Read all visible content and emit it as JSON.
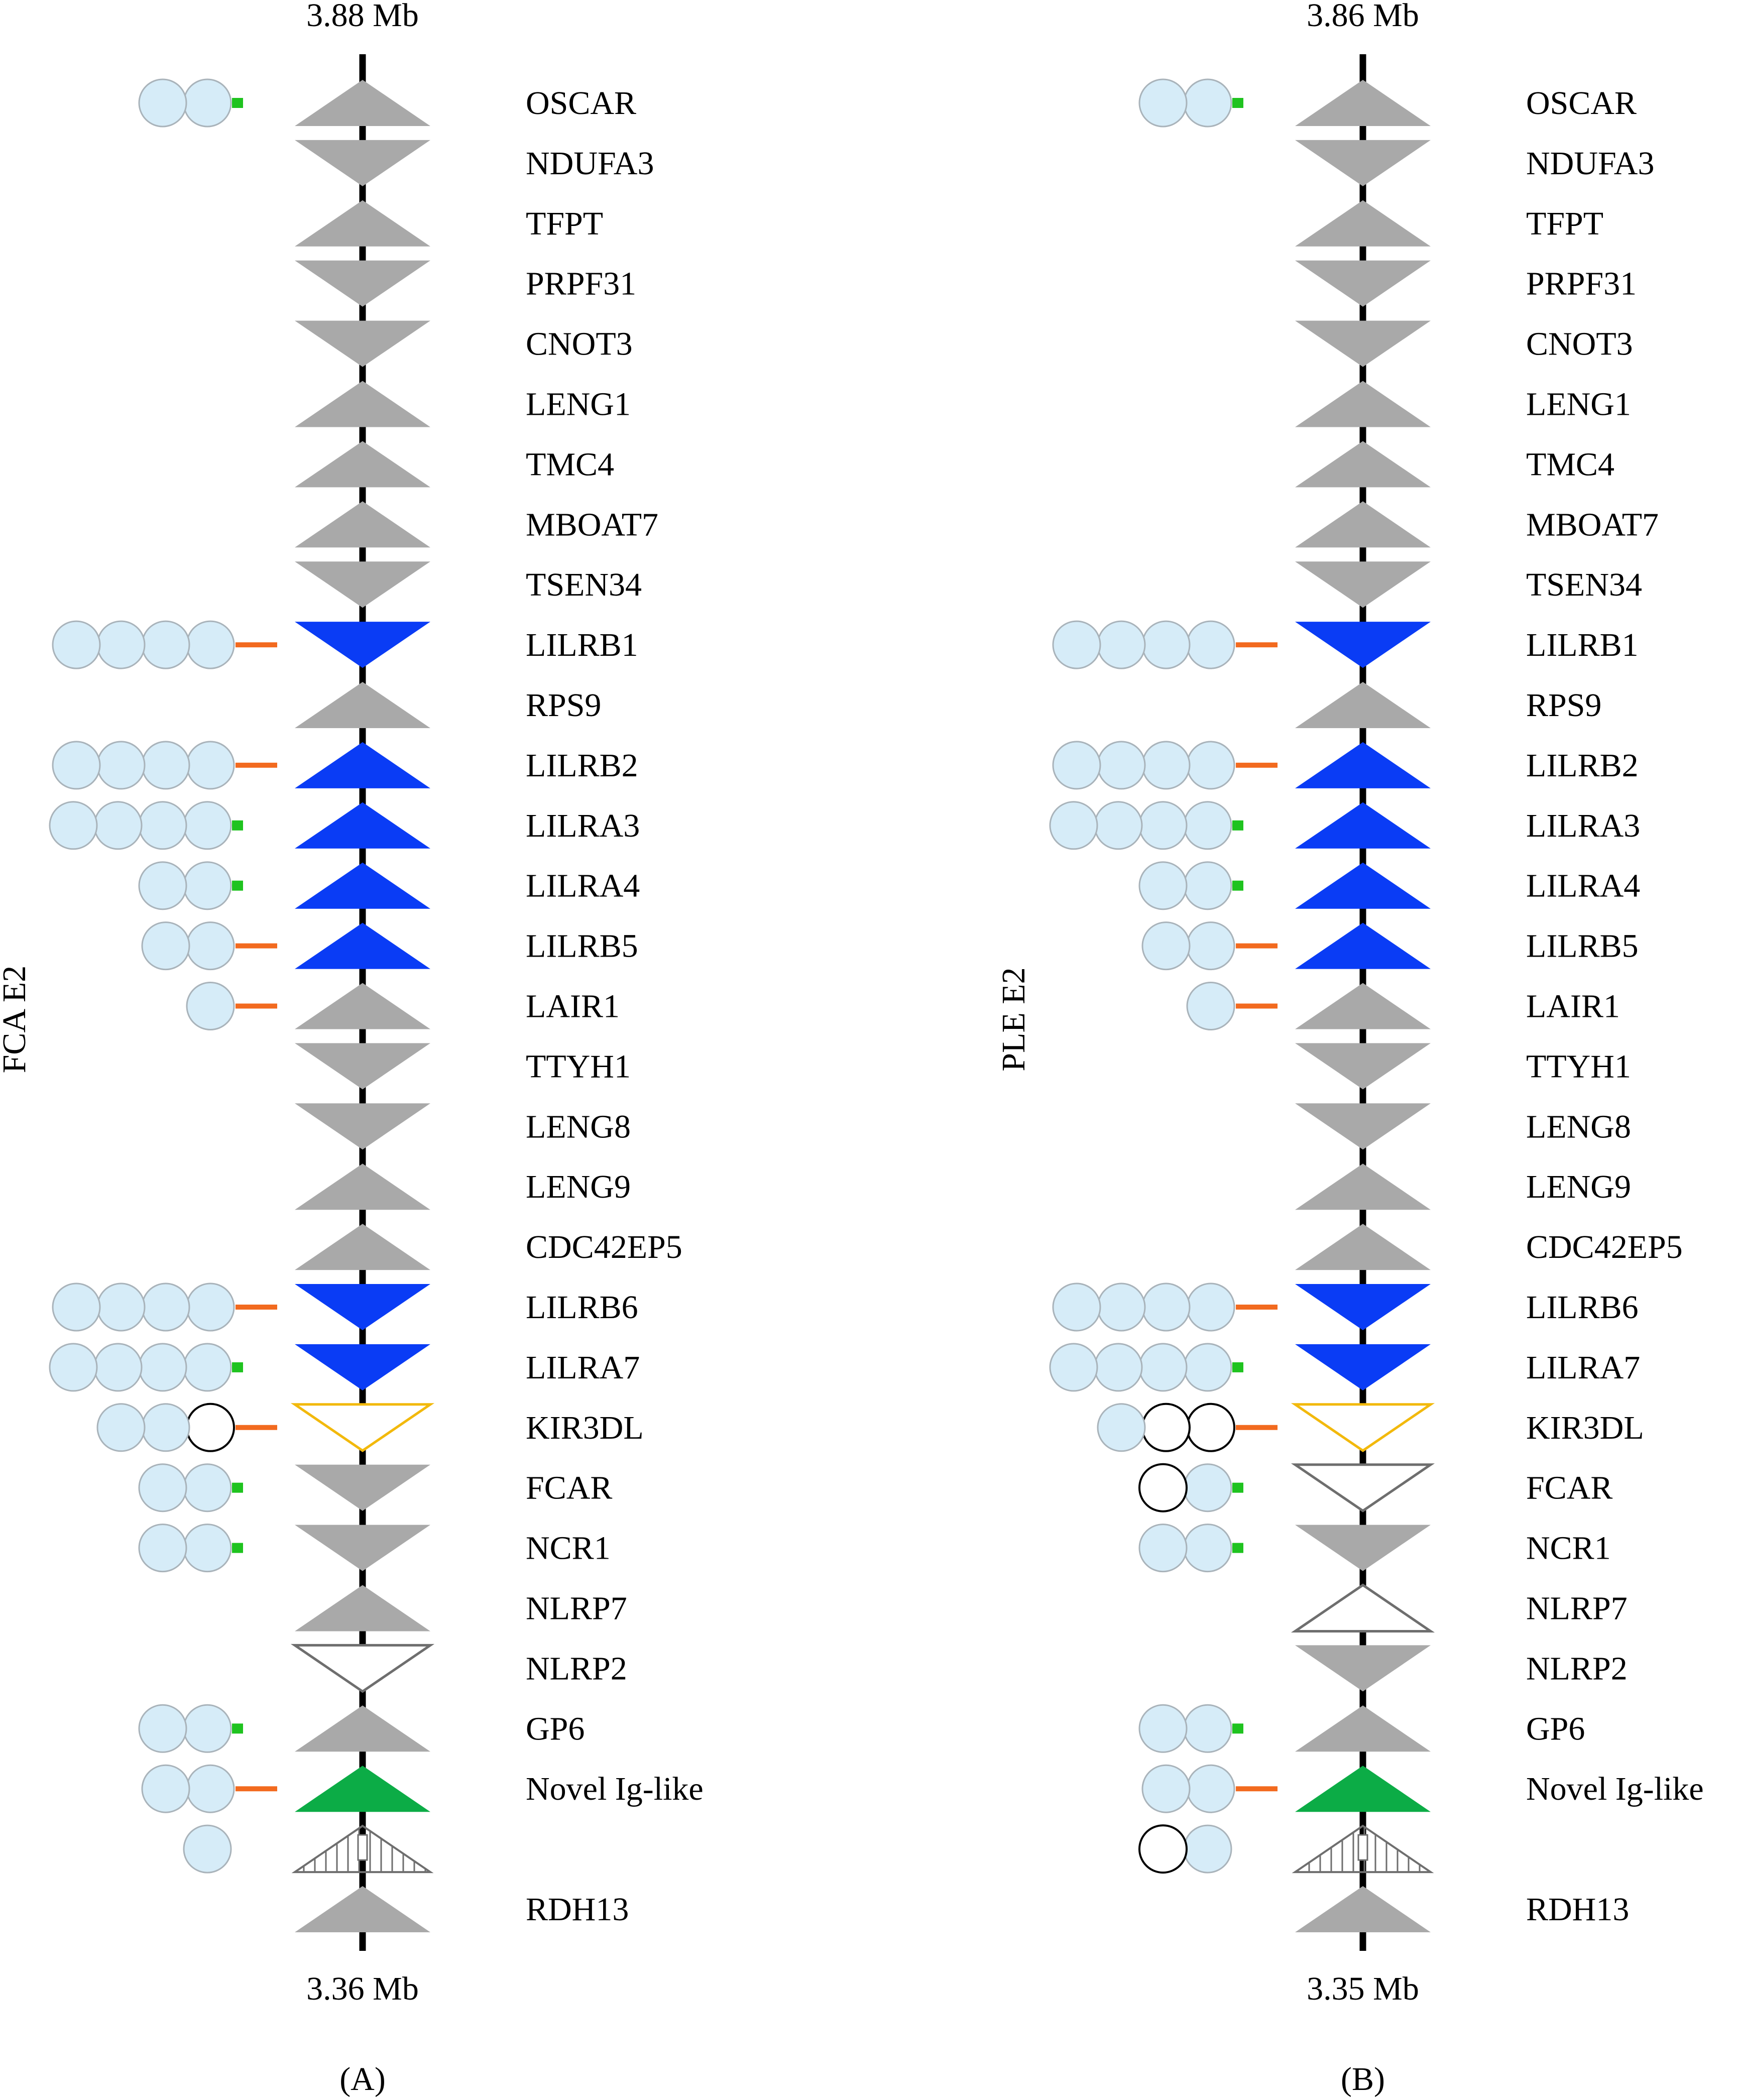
{
  "palette": {
    "domain_fill": "#d6ecf8",
    "domain_stroke": "#a9b3ba",
    "empty_domain_stroke": "#000000",
    "axis": "#000000",
    "long_tail": "#f26a1f",
    "short_tail": "#1fc31f",
    "gray_gene": "#a9a9a9",
    "blue_gene": "#0a3cf5",
    "green_gene": "#0cac46",
    "kir_outline": "#f2b90c",
    "open_outline": "#6e6e6e",
    "pseudo_outline": "#6e6e6e"
  },
  "legend_key": {
    "shapes": [
      "up",
      "down"
    ],
    "styles": [
      "gray",
      "blue",
      "green",
      "open",
      "kir",
      "pseudo"
    ],
    "tails": [
      "long",
      "short",
      "none"
    ],
    "domain_codes": [
      "f = filled Ig-like domain",
      "o = empty Ig-like domain"
    ]
  },
  "panels": [
    {
      "id": "A",
      "caption": "(A)",
      "side_label": "FCA E2",
      "top_label": "3.88 Mb",
      "bottom_label": "3.36 Mb",
      "genes": [
        {
          "name": "OSCAR",
          "dir": "up",
          "style": "gray",
          "domains": "ff",
          "tail": "short"
        },
        {
          "name": "NDUFA3",
          "dir": "down",
          "style": "gray",
          "domains": "",
          "tail": "none"
        },
        {
          "name": "TFPT",
          "dir": "up",
          "style": "gray",
          "domains": "",
          "tail": "none"
        },
        {
          "name": "PRPF31",
          "dir": "down",
          "style": "gray",
          "domains": "",
          "tail": "none"
        },
        {
          "name": "CNOT3",
          "dir": "down",
          "style": "gray",
          "domains": "",
          "tail": "none"
        },
        {
          "name": "LENG1",
          "dir": "up",
          "style": "gray",
          "domains": "",
          "tail": "none"
        },
        {
          "name": "TMC4",
          "dir": "up",
          "style": "gray",
          "domains": "",
          "tail": "none"
        },
        {
          "name": "MBOAT7",
          "dir": "up",
          "style": "gray",
          "domains": "",
          "tail": "none"
        },
        {
          "name": "TSEN34",
          "dir": "down",
          "style": "gray",
          "domains": "",
          "tail": "none"
        },
        {
          "name": "LILRB1",
          "dir": "down",
          "style": "blue",
          "domains": "ffff",
          "tail": "long"
        },
        {
          "name": "RPS9",
          "dir": "up",
          "style": "gray",
          "domains": "",
          "tail": "none"
        },
        {
          "name": "LILRB2",
          "dir": "up",
          "style": "blue",
          "domains": "ffff",
          "tail": "long"
        },
        {
          "name": "LILRA3",
          "dir": "up",
          "style": "blue",
          "domains": "ffff",
          "tail": "short"
        },
        {
          "name": "LILRA4",
          "dir": "up",
          "style": "blue",
          "domains": "ff",
          "tail": "short"
        },
        {
          "name": "LILRB5",
          "dir": "up",
          "style": "blue",
          "domains": "ff",
          "tail": "long"
        },
        {
          "name": "LAIR1",
          "dir": "up",
          "style": "gray",
          "domains": "f",
          "tail": "long"
        },
        {
          "name": "TTYH1",
          "dir": "down",
          "style": "gray",
          "domains": "",
          "tail": "none"
        },
        {
          "name": "LENG8",
          "dir": "down",
          "style": "gray",
          "domains": "",
          "tail": "none"
        },
        {
          "name": "LENG9",
          "dir": "up",
          "style": "gray",
          "domains": "",
          "tail": "none"
        },
        {
          "name": "CDC42EP5",
          "dir": "up",
          "style": "gray",
          "domains": "",
          "tail": "none"
        },
        {
          "name": "LILRB6",
          "dir": "down",
          "style": "blue",
          "domains": "ffff",
          "tail": "long"
        },
        {
          "name": "LILRA7",
          "dir": "down",
          "style": "blue",
          "domains": "ffff",
          "tail": "short"
        },
        {
          "name": "KIR3DL",
          "dir": "down",
          "style": "kir",
          "domains": "ffo",
          "tail": "long"
        },
        {
          "name": "FCAR",
          "dir": "down",
          "style": "gray",
          "domains": "ff",
          "tail": "short"
        },
        {
          "name": "NCR1",
          "dir": "down",
          "style": "gray",
          "domains": "ff",
          "tail": "short"
        },
        {
          "name": "NLRP7",
          "dir": "up",
          "style": "gray",
          "domains": "",
          "tail": "none"
        },
        {
          "name": "NLRP2",
          "dir": "down",
          "style": "open",
          "domains": "",
          "tail": "none"
        },
        {
          "name": "GP6",
          "dir": "up",
          "style": "gray",
          "domains": "ff",
          "tail": "short"
        },
        {
          "name": "Novel Ig-like",
          "dir": "up",
          "style": "green",
          "domains": "ff",
          "tail": "long"
        },
        {
          "name": "",
          "dir": "up",
          "style": "pseudo",
          "domains": "f",
          "tail": "none"
        },
        {
          "name": "RDH13",
          "dir": "up",
          "style": "gray",
          "domains": "",
          "tail": "none"
        }
      ]
    },
    {
      "id": "B",
      "caption": "(B)",
      "side_label": "PLE E2",
      "top_label": "3.86 Mb",
      "bottom_label": "3.35 Mb",
      "genes": [
        {
          "name": "OSCAR",
          "dir": "up",
          "style": "gray",
          "domains": "ff",
          "tail": "short"
        },
        {
          "name": "NDUFA3",
          "dir": "down",
          "style": "gray",
          "domains": "",
          "tail": "none"
        },
        {
          "name": "TFPT",
          "dir": "up",
          "style": "gray",
          "domains": "",
          "tail": "none"
        },
        {
          "name": "PRPF31",
          "dir": "down",
          "style": "gray",
          "domains": "",
          "tail": "none"
        },
        {
          "name": "CNOT3",
          "dir": "down",
          "style": "gray",
          "domains": "",
          "tail": "none"
        },
        {
          "name": "LENG1",
          "dir": "up",
          "style": "gray",
          "domains": "",
          "tail": "none"
        },
        {
          "name": "TMC4",
          "dir": "up",
          "style": "gray",
          "domains": "",
          "tail": "none"
        },
        {
          "name": "MBOAT7",
          "dir": "up",
          "style": "gray",
          "domains": "",
          "tail": "none"
        },
        {
          "name": "TSEN34",
          "dir": "down",
          "style": "gray",
          "domains": "",
          "tail": "none"
        },
        {
          "name": "LILRB1",
          "dir": "down",
          "style": "blue",
          "domains": "ffff",
          "tail": "long"
        },
        {
          "name": "RPS9",
          "dir": "up",
          "style": "gray",
          "domains": "",
          "tail": "none"
        },
        {
          "name": "LILRB2",
          "dir": "up",
          "style": "blue",
          "domains": "ffff",
          "tail": "long"
        },
        {
          "name": "LILRA3",
          "dir": "up",
          "style": "blue",
          "domains": "ffff",
          "tail": "short"
        },
        {
          "name": "LILRA4",
          "dir": "up",
          "style": "blue",
          "domains": "ff",
          "tail": "short"
        },
        {
          "name": "LILRB5",
          "dir": "up",
          "style": "blue",
          "domains": "ff",
          "tail": "long"
        },
        {
          "name": "LAIR1",
          "dir": "up",
          "style": "gray",
          "domains": "f",
          "tail": "long"
        },
        {
          "name": "TTYH1",
          "dir": "down",
          "style": "gray",
          "domains": "",
          "tail": "none"
        },
        {
          "name": "LENG8",
          "dir": "down",
          "style": "gray",
          "domains": "",
          "tail": "none"
        },
        {
          "name": "LENG9",
          "dir": "up",
          "style": "gray",
          "domains": "",
          "tail": "none"
        },
        {
          "name": "CDC42EP5",
          "dir": "up",
          "style": "gray",
          "domains": "",
          "tail": "none"
        },
        {
          "name": "LILRB6",
          "dir": "down",
          "style": "blue",
          "domains": "ffff",
          "tail": "long"
        },
        {
          "name": "LILRA7",
          "dir": "down",
          "style": "blue",
          "domains": "ffff",
          "tail": "short"
        },
        {
          "name": "KIR3DL",
          "dir": "down",
          "style": "kir",
          "domains": "foo",
          "tail": "long"
        },
        {
          "name": "FCAR",
          "dir": "down",
          "style": "open",
          "domains": "of",
          "tail": "short"
        },
        {
          "name": "NCR1",
          "dir": "down",
          "style": "gray",
          "domains": "ff",
          "tail": "short"
        },
        {
          "name": "NLRP7",
          "dir": "up",
          "style": "open",
          "domains": "",
          "tail": "none"
        },
        {
          "name": "NLRP2",
          "dir": "down",
          "style": "gray",
          "domains": "",
          "tail": "none"
        },
        {
          "name": "GP6",
          "dir": "up",
          "style": "gray",
          "domains": "ff",
          "tail": "short"
        },
        {
          "name": "Novel Ig-like",
          "dir": "up",
          "style": "green",
          "domains": "ff",
          "tail": "long"
        },
        {
          "name": "",
          "dir": "up",
          "style": "pseudo",
          "domains": "of",
          "tail": "none"
        },
        {
          "name": "RDH13",
          "dir": "up",
          "style": "gray",
          "domains": "",
          "tail": "none"
        }
      ]
    }
  ]
}
